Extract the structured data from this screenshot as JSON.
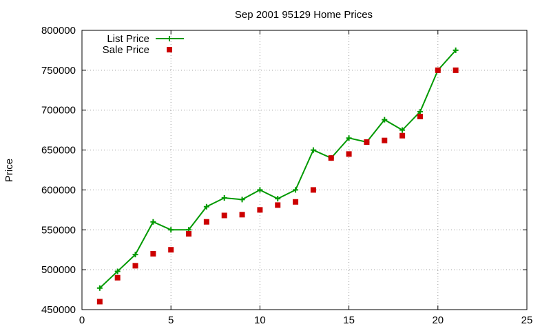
{
  "chart_data": {
    "type": "line",
    "title": "Sep 2001 95129 Home Prices",
    "xlabel": "",
    "ylabel": "Price",
    "xlim": [
      0,
      25
    ],
    "ylim": [
      450000,
      800000
    ],
    "x_ticks": [
      0,
      5,
      10,
      15,
      20,
      25
    ],
    "y_ticks": [
      450000,
      500000,
      550000,
      600000,
      650000,
      700000,
      750000,
      800000
    ],
    "grid": true,
    "legend_position": "top-left",
    "series": [
      {
        "name": "List Price",
        "style": "line-with-plus-markers",
        "color": "#009900",
        "x": [
          1,
          2,
          3,
          4,
          5,
          6,
          7,
          8,
          9,
          10,
          11,
          12,
          13,
          14,
          15,
          16,
          17,
          18,
          19,
          20,
          21
        ],
        "values": [
          477000,
          498000,
          519000,
          560000,
          550000,
          550000,
          579000,
          590000,
          588000,
          600000,
          589000,
          600000,
          650000,
          640000,
          665000,
          660000,
          688000,
          675000,
          698000,
          750000,
          775000
        ]
      },
      {
        "name": "Sale Price",
        "style": "square-markers",
        "color": "#cc0000",
        "x": [
          1,
          2,
          3,
          4,
          5,
          6,
          7,
          8,
          9,
          10,
          11,
          12,
          13,
          14,
          15,
          16,
          17,
          18,
          19,
          20,
          21
        ],
        "values": [
          460000,
          490000,
          505000,
          520000,
          525000,
          545000,
          560000,
          568000,
          569000,
          575000,
          581000,
          585000,
          600000,
          640000,
          645000,
          660000,
          662000,
          668000,
          692000,
          750000,
          750000
        ]
      }
    ]
  }
}
